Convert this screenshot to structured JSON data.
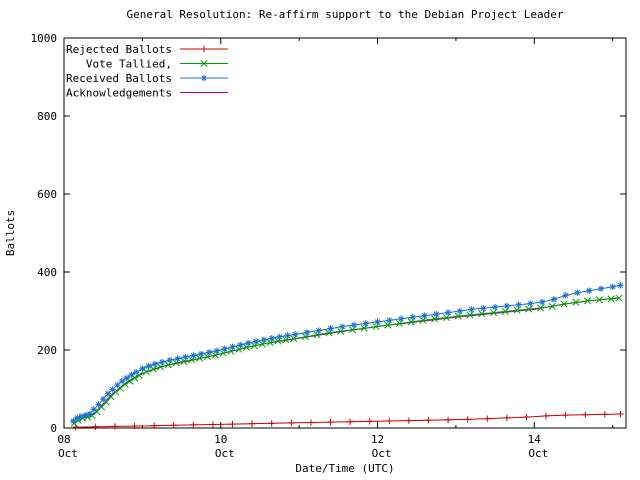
{
  "window": {
    "background": "#ffffff"
  },
  "chart_data": {
    "type": "line",
    "title": "General Resolution: Re-affirm support to the Debian Project Leader",
    "xlabel": "Date/Time (UTC)",
    "ylabel": "Ballots",
    "xlim": [
      8,
      15.17
    ],
    "ylim": [
      0,
      1000
    ],
    "grid": false,
    "legend_position": "top-left",
    "yticks": [
      0,
      200,
      400,
      600,
      800,
      1000
    ],
    "xticks": [
      {
        "v": 8,
        "label": "08",
        "sub": "Oct"
      },
      {
        "v": 10,
        "label": "10",
        "sub": "Oct"
      },
      {
        "v": 12,
        "label": "12",
        "sub": "Oct"
      },
      {
        "v": 14,
        "label": "14",
        "sub": "Oct"
      }
    ],
    "xticks_minor": [
      9,
      11,
      13,
      15
    ],
    "series": [
      {
        "name": "Rejected Ballots",
        "color": "#cc0000",
        "marker": "plus",
        "z": 1,
        "points": [
          [
            8.15,
            2
          ],
          [
            8.4,
            3
          ],
          [
            8.65,
            4
          ],
          [
            8.9,
            5
          ],
          [
            9.15,
            6
          ],
          [
            9.4,
            7
          ],
          [
            9.65,
            8
          ],
          [
            9.9,
            9
          ],
          [
            10.15,
            10
          ],
          [
            10.4,
            11
          ],
          [
            10.65,
            12
          ],
          [
            10.9,
            13
          ],
          [
            11.15,
            14
          ],
          [
            11.4,
            15
          ],
          [
            11.65,
            16
          ],
          [
            11.9,
            17
          ],
          [
            12.15,
            18
          ],
          [
            12.4,
            19
          ],
          [
            12.65,
            20
          ],
          [
            12.9,
            21
          ],
          [
            13.15,
            22
          ],
          [
            13.4,
            24
          ],
          [
            13.65,
            26
          ],
          [
            13.9,
            28
          ],
          [
            14.15,
            31
          ],
          [
            14.4,
            33
          ],
          [
            14.65,
            34
          ],
          [
            14.9,
            35
          ],
          [
            15.1,
            36
          ]
        ]
      },
      {
        "name": "Vote Tallied,",
        "color": "#00a000",
        "marker": "cross",
        "z": 2,
        "points": [
          [
            8.13,
            12
          ],
          [
            8.18,
            20
          ],
          [
            8.24,
            25
          ],
          [
            8.3,
            28
          ],
          [
            8.36,
            32
          ],
          [
            8.42,
            42
          ],
          [
            8.48,
            54
          ],
          [
            8.54,
            66
          ],
          [
            8.6,
            80
          ],
          [
            8.66,
            92
          ],
          [
            8.72,
            102
          ],
          [
            8.78,
            112
          ],
          [
            8.84,
            120
          ],
          [
            8.9,
            128
          ],
          [
            8.96,
            135
          ],
          [
            9.05,
            144
          ],
          [
            9.14,
            151
          ],
          [
            9.23,
            157
          ],
          [
            9.33,
            162
          ],
          [
            9.43,
            167
          ],
          [
            9.53,
            171
          ],
          [
            9.63,
            175
          ],
          [
            9.73,
            179
          ],
          [
            9.83,
            183
          ],
          [
            9.93,
            187
          ],
          [
            10.03,
            192
          ],
          [
            10.13,
            197
          ],
          [
            10.23,
            202
          ],
          [
            10.33,
            207
          ],
          [
            10.43,
            211
          ],
          [
            10.53,
            215
          ],
          [
            10.63,
            219
          ],
          [
            10.73,
            223
          ],
          [
            10.83,
            226
          ],
          [
            10.93,
            229
          ],
          [
            11.08,
            234
          ],
          [
            11.23,
            239
          ],
          [
            11.38,
            244
          ],
          [
            11.53,
            248
          ],
          [
            11.68,
            252
          ],
          [
            11.83,
            256
          ],
          [
            11.98,
            260
          ],
          [
            12.13,
            264
          ],
          [
            12.28,
            268
          ],
          [
            12.43,
            272
          ],
          [
            12.58,
            276
          ],
          [
            12.73,
            280
          ],
          [
            12.88,
            283
          ],
          [
            13.03,
            287
          ],
          [
            13.18,
            290
          ],
          [
            13.33,
            293
          ],
          [
            13.48,
            296
          ],
          [
            13.63,
            299
          ],
          [
            13.78,
            302
          ],
          [
            13.93,
            305
          ],
          [
            14.08,
            308
          ],
          [
            14.23,
            312
          ],
          [
            14.38,
            318
          ],
          [
            14.53,
            322
          ],
          [
            14.68,
            326
          ],
          [
            14.83,
            329
          ],
          [
            14.98,
            331
          ],
          [
            15.08,
            333
          ]
        ]
      },
      {
        "name": "Received Ballots",
        "color": "#1a70d4",
        "marker": "star",
        "z": 3,
        "points": [
          [
            8.12,
            18
          ],
          [
            8.17,
            26
          ],
          [
            8.22,
            30
          ],
          [
            8.28,
            33
          ],
          [
            8.33,
            36
          ],
          [
            8.38,
            48
          ],
          [
            8.44,
            60
          ],
          [
            8.5,
            74
          ],
          [
            8.56,
            88
          ],
          [
            8.62,
            99
          ],
          [
            8.68,
            110
          ],
          [
            8.74,
            120
          ],
          [
            8.8,
            128
          ],
          [
            8.86,
            136
          ],
          [
            8.92,
            143
          ],
          [
            9.0,
            152
          ],
          [
            9.08,
            159
          ],
          [
            9.16,
            164
          ],
          [
            9.25,
            169
          ],
          [
            9.35,
            174
          ],
          [
            9.45,
            178
          ],
          [
            9.55,
            182
          ],
          [
            9.65,
            186
          ],
          [
            9.75,
            190
          ],
          [
            9.85,
            194
          ],
          [
            9.95,
            198
          ],
          [
            10.05,
            203
          ],
          [
            10.15,
            208
          ],
          [
            10.25,
            213
          ],
          [
            10.35,
            218
          ],
          [
            10.45,
            222
          ],
          [
            10.55,
            226
          ],
          [
            10.65,
            230
          ],
          [
            10.75,
            234
          ],
          [
            10.85,
            237
          ],
          [
            10.95,
            240
          ],
          [
            11.1,
            245
          ],
          [
            11.25,
            250
          ],
          [
            11.4,
            255
          ],
          [
            11.55,
            260
          ],
          [
            11.7,
            264
          ],
          [
            11.85,
            268
          ],
          [
            12.0,
            272
          ],
          [
            12.15,
            276
          ],
          [
            12.3,
            280
          ],
          [
            12.45,
            284
          ],
          [
            12.6,
            288
          ],
          [
            12.75,
            292
          ],
          [
            12.9,
            296
          ],
          [
            13.05,
            300
          ],
          [
            13.2,
            304
          ],
          [
            13.35,
            307
          ],
          [
            13.5,
            310
          ],
          [
            13.65,
            313
          ],
          [
            13.8,
            316
          ],
          [
            13.95,
            319
          ],
          [
            14.1,
            323
          ],
          [
            14.25,
            330
          ],
          [
            14.4,
            340
          ],
          [
            14.55,
            347
          ],
          [
            14.7,
            352
          ],
          [
            14.85,
            357
          ],
          [
            15.0,
            362
          ],
          [
            15.1,
            366
          ]
        ]
      },
      {
        "name": "Acknowledgements",
        "color": "#a000a0",
        "marker": "none",
        "z": 0,
        "points": [
          [
            8.13,
            14
          ],
          [
            8.4,
            40
          ],
          [
            8.6,
            84
          ],
          [
            8.8,
            118
          ],
          [
            9.0,
            140
          ],
          [
            9.3,
            160
          ],
          [
            9.6,
            172
          ],
          [
            10.0,
            190
          ],
          [
            10.5,
            214
          ],
          [
            11.0,
            230
          ],
          [
            11.5,
            246
          ],
          [
            12.0,
            260
          ],
          [
            12.5,
            272
          ],
          [
            13.0,
            284
          ],
          [
            13.5,
            294
          ],
          [
            14.0,
            304
          ],
          [
            14.4,
            318
          ],
          [
            14.7,
            326
          ],
          [
            15.08,
            334
          ]
        ]
      }
    ]
  }
}
